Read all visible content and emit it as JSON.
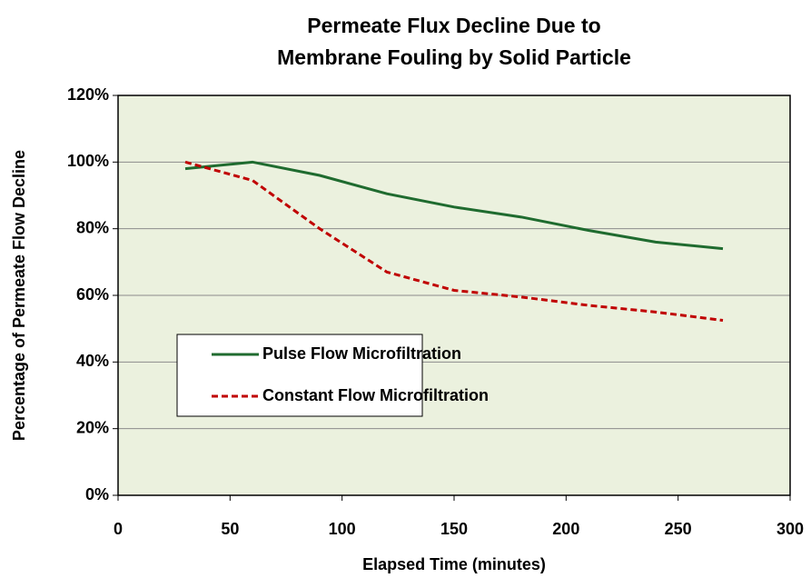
{
  "chart_data": {
    "type": "line",
    "title": [
      "Permeate Flux Decline Due to",
      "Membrane Fouling by Solid Particle"
    ],
    "xlabel": "Elapsed Time (minutes)",
    "ylabel": "Percentage of Permeate Flow Decline",
    "x": [
      30,
      60,
      90,
      120,
      150,
      180,
      210,
      240,
      270
    ],
    "series": [
      {
        "name": "Pulse Flow Microfiltration",
        "color": "#1f6b2f",
        "dashed": false,
        "values": [
          98,
          100,
          96,
          90.5,
          86.5,
          83.5,
          79.5,
          76,
          74
        ]
      },
      {
        "name": "Constant Flow Microfiltration",
        "color": "#c00000",
        "dashed": true,
        "values": [
          100,
          94.5,
          80,
          67,
          61.5,
          59.5,
          57,
          55,
          52.5
        ]
      }
    ],
    "xlim": [
      0,
      300
    ],
    "xticks": [
      0,
      50,
      100,
      150,
      200,
      250,
      300
    ],
    "ylim": [
      0,
      120
    ],
    "yticks": [
      {
        "value": 0,
        "label": "0%"
      },
      {
        "value": 20,
        "label": "20%"
      },
      {
        "value": 40,
        "label": "40%"
      },
      {
        "value": 60,
        "label": "60%"
      },
      {
        "value": 80,
        "label": "80%"
      },
      {
        "value": 100,
        "label": "100%"
      },
      {
        "value": 120,
        "label": "120%"
      }
    ],
    "grid": true,
    "plot_background": "#ebf1de",
    "legend": "lower left"
  }
}
